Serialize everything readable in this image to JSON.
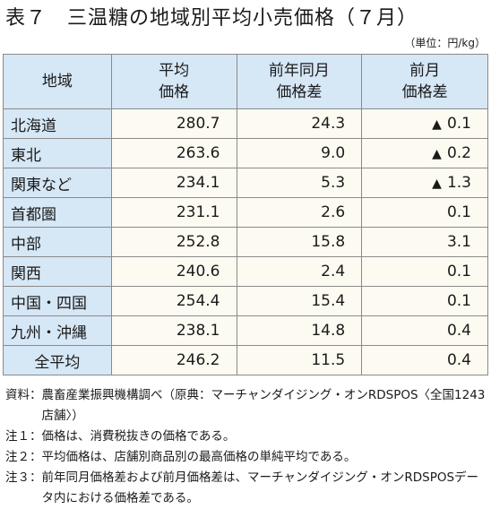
{
  "title": "表７　三温糖の地域別平均小売価格（７月）",
  "unit": "（単位：円/kg）",
  "table": {
    "headers": [
      [
        "地域"
      ],
      [
        "平均",
        "価格"
      ],
      [
        "前年同月",
        "価格差"
      ],
      [
        "前月",
        "価格差"
      ]
    ],
    "rows": [
      {
        "region": "北海道",
        "avg": "280.7",
        "yoy": "24.3",
        "mom": "0.1",
        "mom_marker": "▲"
      },
      {
        "region": "東北",
        "avg": "263.6",
        "yoy": "9.0",
        "mom": "0.2",
        "mom_marker": "▲"
      },
      {
        "region": "関東など",
        "avg": "234.1",
        "yoy": "5.3",
        "mom": "1.3",
        "mom_marker": "▲"
      },
      {
        "region": "首都圏",
        "avg": "231.1",
        "yoy": "2.6",
        "mom": "0.1",
        "mom_marker": ""
      },
      {
        "region": "中部",
        "avg": "252.8",
        "yoy": "15.8",
        "mom": "3.1",
        "mom_marker": ""
      },
      {
        "region": "関西",
        "avg": "240.6",
        "yoy": "2.4",
        "mom": "0.1",
        "mom_marker": ""
      },
      {
        "region": "中国・四国",
        "avg": "254.4",
        "yoy": "15.4",
        "mom": "0.1",
        "mom_marker": ""
      },
      {
        "region": "九州・沖縄",
        "avg": "238.1",
        "yoy": "14.8",
        "mom": "0.4",
        "mom_marker": ""
      },
      {
        "region": "全平均",
        "avg": "246.2",
        "yoy": "11.5",
        "mom": "0.4",
        "mom_marker": ""
      }
    ]
  },
  "notes": [
    {
      "label": "資料：",
      "text": "農畜産業振興機構調べ（原典：マーチャンダイジング・オンRDSPOS〈全国1243店舗〉）"
    },
    {
      "label": "注１：",
      "text": "価格は、消費税抜きの価格である。"
    },
    {
      "label": "注２：",
      "text": "平均価格は、店舗別商品別の最高価格の単純平均である。"
    },
    {
      "label": "注３：",
      "text": "前年同月価格差および前月価格差は、マーチャンダイジング・オンRDSPOSデータ内における価格差である。"
    }
  ]
}
